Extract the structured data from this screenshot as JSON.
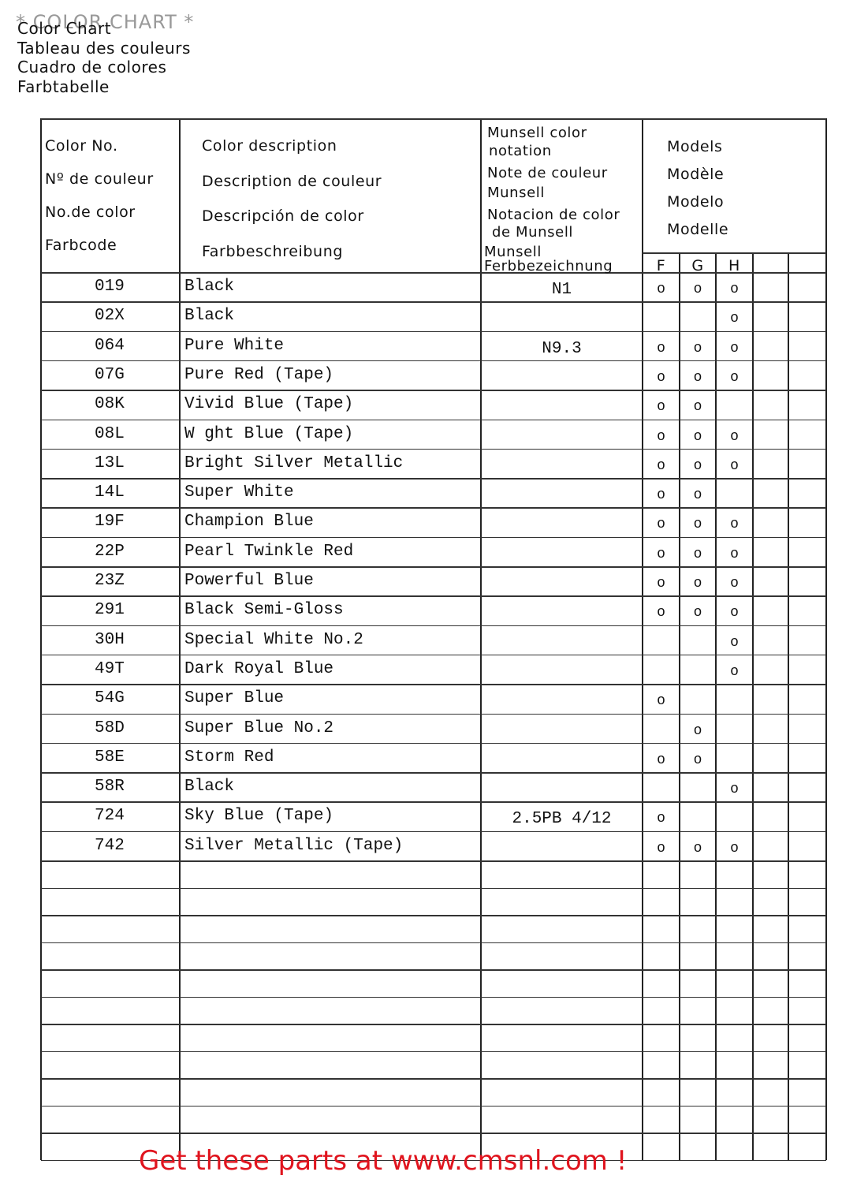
{
  "overlay_title": "* COLOR CHART *",
  "header_lines": [
    "Color Chart",
    "Tableau des couleurs",
    "Cuadro de colores",
    "Farbtabelle"
  ],
  "table": {
    "columns": {
      "color_no": [
        "Color No.",
        "Nº de couleur",
        "No.de color",
        "Farbcode"
      ],
      "description": [
        "Color description",
        "Description de couleur",
        "Descripción de color",
        "Farbbeschreibung"
      ],
      "munsell": [
        "Munsell color",
        "notation",
        "Note de couleur",
        "Munsell",
        "Notacion de color",
        "de Munsell",
        "Munsell",
        "Ferbbezeichnung"
      ],
      "models": [
        "Models",
        "Modèle",
        "Modelo",
        "Modelle"
      ],
      "model_letters": [
        "F",
        "G",
        "H"
      ]
    },
    "rows": [
      {
        "code": "019",
        "description": "Black",
        "munsell": "N1",
        "F": "o",
        "G": "o",
        "H": "o"
      },
      {
        "code": "02X",
        "description": "Black",
        "H": "o"
      },
      {
        "code": "064",
        "description": "Pure White",
        "munsell": "N9.3",
        "F": "o",
        "G": "o",
        "H": "o"
      },
      {
        "code": "07G",
        "description": "Pure Red (Tape)",
        "F": "o",
        "G": "o",
        "H": "o"
      },
      {
        "code": "08K",
        "description": "Vivid Blue (Tape)",
        "F": "o",
        "G": "o"
      },
      {
        "code": "08L",
        "description": "W ght Blue (Tape)",
        "F": "o",
        "G": "o",
        "H": "o"
      },
      {
        "code": "13L",
        "description": "Bright Silver Metallic",
        "F": "o",
        "G": "o",
        "H": "o"
      },
      {
        "code": "14L",
        "description": "Super White",
        "F": "o",
        "G": "o"
      },
      {
        "code": "19F",
        "description": "Champion Blue",
        "F": "o",
        "G": "o",
        "H": "o"
      },
      {
        "code": "22P",
        "description": "Pearl Twinkle Red",
        "F": "o",
        "G": "o",
        "H": "o"
      },
      {
        "code": "23Z",
        "description": "Powerful Blue",
        "F": "o",
        "G": "o",
        "H": "o"
      },
      {
        "code": "291",
        "description": "Black Semi-Gloss",
        "F": "o",
        "G": "o",
        "H": "o"
      },
      {
        "code": "30H",
        "description": "Special White No.2",
        "H": "o"
      },
      {
        "code": "49T",
        "description": "Dark Royal Blue",
        "H": "o"
      },
      {
        "code": "54G",
        "description": "Super Blue",
        "F": "o"
      },
      {
        "code": "58D",
        "description": "Super Blue No.2",
        "G": "o"
      },
      {
        "code": "58E",
        "description": "Storm Red",
        "F": "o",
        "G": "o"
      },
      {
        "code": "58R",
        "description": "Black",
        "H": "o"
      },
      {
        "code": "724",
        "description": "Sky Blue (Tape)",
        "munsell": "2.5PB 4/12",
        "F": "o"
      },
      {
        "code": "742",
        "description": "Silver Metallic (Tape)",
        "F": "o",
        "G": "o",
        "H": "o"
      }
    ]
  },
  "footer": "Get these parts at www.cmsnl.com !"
}
